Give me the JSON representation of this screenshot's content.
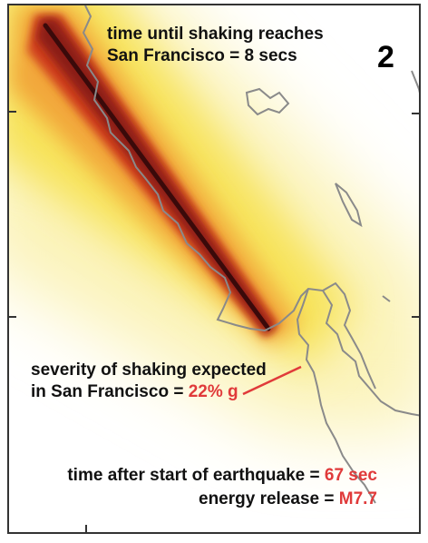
{
  "panel_number": "2",
  "time_label": {
    "line1": "time until shaking reaches",
    "line2_prefix": "San Francisco = ",
    "line2_value": "8 secs"
  },
  "severity_label": {
    "line1": "severity of shaking expected",
    "line2_prefix": "in San Francisco = ",
    "line2_value": "22% g"
  },
  "elapsed_label": {
    "prefix": "time after start of earthquake = ",
    "value": "67 sec"
  },
  "energy_label": {
    "prefix": "energy release = ",
    "value": "M7.7"
  },
  "colors": {
    "fault": "#3a0a0a",
    "intense": "#8b1a14",
    "strong": "#d0401e",
    "moderate": "#f2a73a",
    "weak": "#f7e35a",
    "faint": "#fbf3b8",
    "coastline": "#8a8a8a",
    "value_text": "#e03a3a",
    "pointer": "#e03a3a"
  }
}
